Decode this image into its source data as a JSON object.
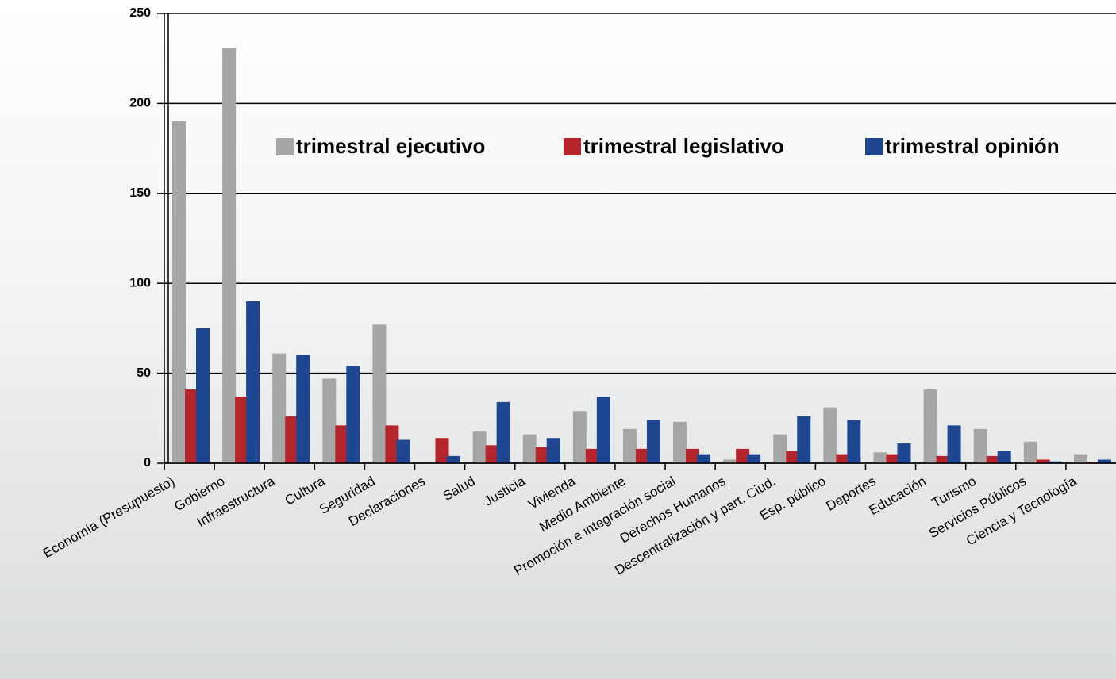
{
  "chart_data": {
    "type": "bar",
    "categories": [
      "Economía (Presupuesto)",
      "Gobierno",
      "Infraestructura",
      "Cultura",
      "Seguridad",
      "Declaraciones",
      "Salud",
      "Justicia",
      "Vivienda",
      "Medio Ambiente",
      "Promoción e integración social",
      "Derechos Humanos",
      "Descentralización y part. Ciud.",
      "Esp. público",
      "Deportes",
      "Educación",
      "Turismo",
      "Servicios Públicos",
      "Ciencia y Tecnología"
    ],
    "series": [
      {
        "name": "trimestral ejecutivo",
        "color": "#a6a6a6",
        "values": [
          190,
          231,
          61,
          47,
          77,
          0,
          18,
          16,
          29,
          19,
          23,
          2,
          16,
          31,
          6,
          41,
          19,
          12,
          5
        ]
      },
      {
        "name": "trimestral legislativo",
        "color": "#b5262c",
        "values": [
          41,
          37,
          26,
          21,
          21,
          14,
          10,
          9,
          8,
          8,
          8,
          8,
          7,
          5,
          5,
          4,
          4,
          2,
          0.5
        ]
      },
      {
        "name": "trimestral opinión",
        "color": "#1f4690",
        "values": [
          75,
          90,
          60,
          54,
          13,
          4,
          34,
          14,
          37,
          24,
          5,
          5,
          26,
          24,
          11,
          21,
          7,
          1,
          2
        ]
      }
    ],
    "ylim": [
      0,
      250
    ],
    "yticks": [
      0,
      50,
      100,
      150,
      200,
      250
    ],
    "grid": true
  }
}
